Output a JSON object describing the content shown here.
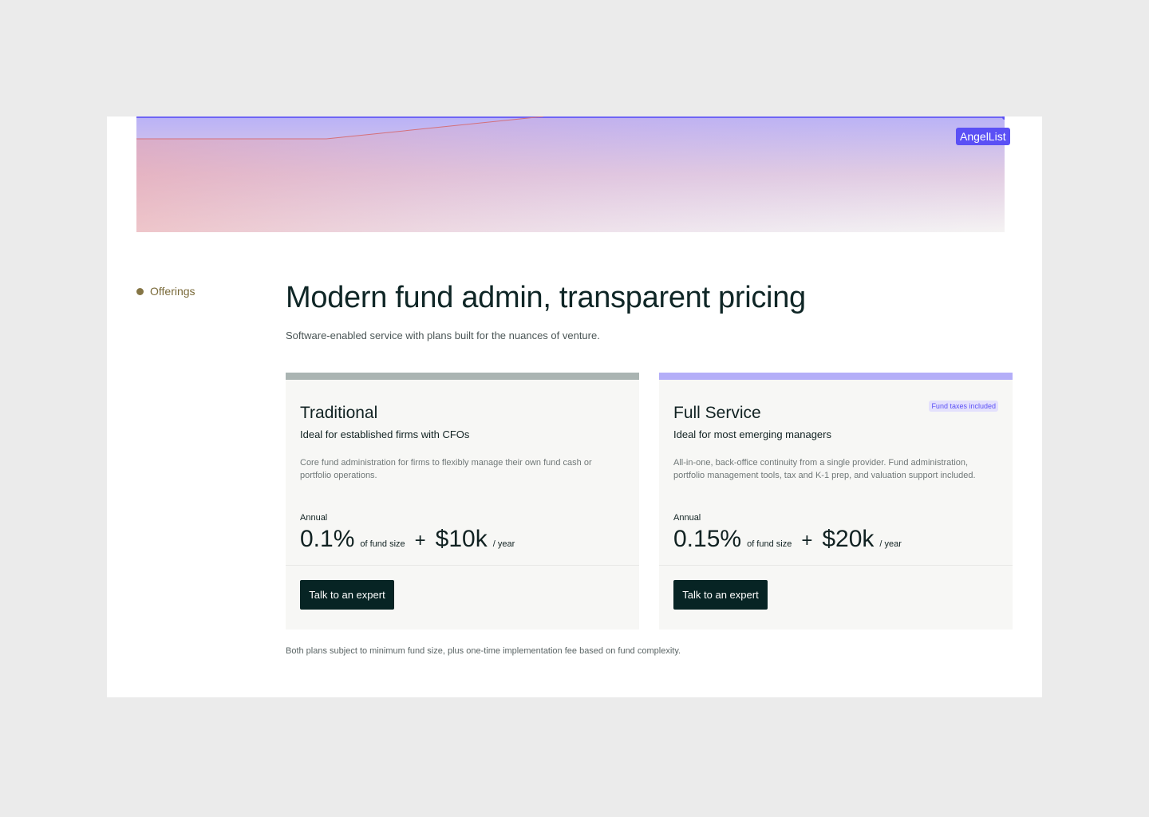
{
  "hero": {
    "brand_label": "AngelList",
    "colors": {
      "accent": "#5b50f5",
      "line_red": "#d4707a"
    }
  },
  "section_label": "Offerings",
  "title": "Modern fund admin, transparent pricing",
  "subtitle": "Software-enabled service with plans built for the nuances of venture.",
  "plans": [
    {
      "name": "Traditional",
      "tagline": "Ideal for established firms with CFOs",
      "description": "Core fund administration for firms to flexibly manage their own fund cash or portfolio operations.",
      "period_label": "Annual",
      "rate": "0.1%",
      "rate_unit": "of fund size",
      "plus": "+",
      "fee": "$10k",
      "fee_unit": "/ year",
      "cta": "Talk to an expert",
      "accent": "#aab4b2"
    },
    {
      "name": "Full Service",
      "badge": "Fund taxes included",
      "tagline": "Ideal for most emerging managers",
      "description": "All-in-one, back-office continuity from a single provider. Fund administration, portfolio management tools, tax and K-1 prep, and valuation support included.",
      "period_label": "Annual",
      "rate": "0.15%",
      "rate_unit": "of fund size",
      "plus": "+",
      "fee": "$20k",
      "fee_unit": "/ year",
      "cta": "Talk to an expert",
      "accent": "#b4aef8"
    }
  ],
  "footnote": "Both plans subject to minimum fund size, plus one-time implementation fee based on fund complexity."
}
